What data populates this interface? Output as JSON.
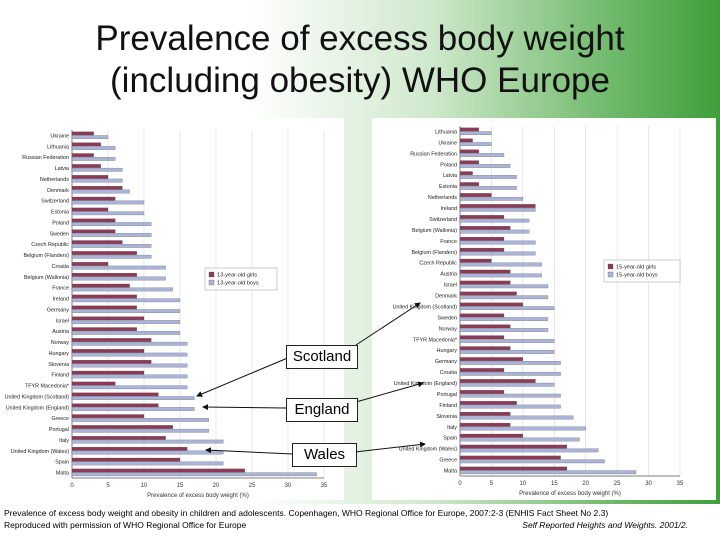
{
  "title": {
    "line1": "Prevalence of excess body weight",
    "line2": "(including obesity) WHO Europe"
  },
  "callouts": {
    "scotland": "Scotland",
    "england": "England",
    "wales": "Wales"
  },
  "footer": {
    "line1": "Prevalence of excess body weight and obesity in children and adolescents. Copenhagen, WHO Regional Office for Europe, 2007:2-3 (ENHIS Fact Sheet No 2.3)",
    "line2": "Reproduced with permission of WHO Regional Office for Europe",
    "line2_right": "Self Reported Heights and Weights. 2001/2."
  },
  "colors": {
    "girls": "#8c3a55",
    "boys": "#aab4d8"
  },
  "chart_data": [
    {
      "type": "bar",
      "orientation": "horizontal",
      "xlabel": "Prevalence of excess body weight (%)",
      "xlim": [
        0,
        35
      ],
      "xticks": [
        0,
        5,
        10,
        15,
        20,
        25,
        30,
        35
      ],
      "legend_position": "center-right",
      "categories": [
        "Ukraine",
        "Lithuania",
        "Russian Federation",
        "Latvia",
        "Netherlands",
        "Denmark",
        "Switzerland",
        "Estonia",
        "Poland",
        "Sweden",
        "Czech Republic",
        "Belgium (Flanders)",
        "Croatia",
        "Belgium (Wallonia)",
        "France",
        "Ireland",
        "Germany",
        "Israel",
        "Austria",
        "Norway",
        "Hungary",
        "Slovenia",
        "Finland",
        "TFYR Macedonia*",
        "United Kingdom (Scotland)",
        "United Kingdom (England)",
        "Greece",
        "Portugal",
        "Italy",
        "United Kingdom (Wales)",
        "Spain",
        "Malta"
      ],
      "series": [
        {
          "name": "13-year-old girls",
          "values": [
            3,
            4,
            3,
            4,
            5,
            7,
            6,
            5,
            6,
            6,
            7,
            9,
            5,
            9,
            8,
            9,
            9,
            10,
            9,
            11,
            10,
            11,
            10,
            6,
            12,
            12,
            10,
            14,
            13,
            16,
            15,
            24
          ]
        },
        {
          "name": "13-year-old boys",
          "values": [
            5,
            6,
            6,
            7,
            7,
            8,
            10,
            10,
            11,
            11,
            11,
            11,
            13,
            13,
            14,
            15,
            15,
            15,
            15,
            16,
            16,
            16,
            16,
            16,
            17,
            17,
            19,
            19,
            21,
            21,
            21,
            34
          ]
        }
      ]
    },
    {
      "type": "bar",
      "orientation": "horizontal",
      "xlabel": "Prevalence of excess body weight (%)",
      "xlim": [
        0,
        35
      ],
      "xticks": [
        0,
        5,
        10,
        15,
        20,
        25,
        30,
        35
      ],
      "legend_position": "center-right",
      "categories": [
        "Lithuania",
        "Ukraine",
        "Russian Federation",
        "Poland",
        "Latvia",
        "Estonia",
        "Netherlands",
        "Ireland",
        "Switzerland",
        "Belgium (Wallonia)",
        "France",
        "Belgium (Flanders)",
        "Czech Republic",
        "Austria",
        "Israel",
        "Denmark",
        "United Kingdom (Scotland)",
        "Sweden",
        "Norway",
        "TFYR Macedonia*",
        "Hungary",
        "Germany",
        "Croatia",
        "United Kingdom (England)",
        "Portugal",
        "Finland",
        "Slovenia",
        "Italy",
        "Spain",
        "United Kingdom (Wales)",
        "Greece",
        "Malta"
      ],
      "series": [
        {
          "name": "15-year-old girls",
          "values": [
            3,
            2,
            3,
            3,
            2,
            3,
            5,
            12,
            7,
            8,
            7,
            7,
            5,
            8,
            8,
            9,
            10,
            7,
            8,
            7,
            8,
            10,
            7,
            12,
            7,
            9,
            8,
            8,
            10,
            17,
            16,
            17
          ]
        },
        {
          "name": "15-year-old boys",
          "values": [
            5,
            5,
            7,
            8,
            9,
            9,
            10,
            12,
            11,
            11,
            12,
            12,
            13,
            13,
            14,
            14,
            15,
            14,
            14,
            15,
            15,
            16,
            16,
            15,
            16,
            16,
            18,
            20,
            19,
            22,
            23,
            28
          ]
        }
      ]
    }
  ]
}
